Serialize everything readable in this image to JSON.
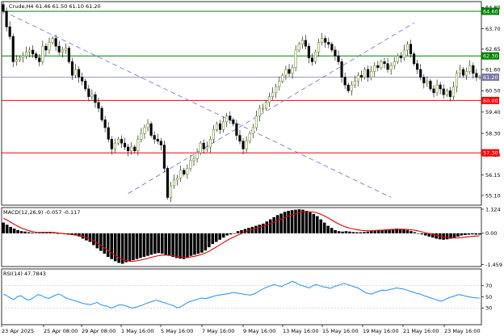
{
  "chart_data": [
    {
      "type": "candlestick",
      "title": "Crude,H4",
      "ohlc_label": "61.46 61.50 61.10 61.20",
      "ylim": [
        54.6,
        65.1
      ],
      "y_ticks": [
        "64.80",
        "63.70",
        "62.65",
        "61.60",
        "60.50",
        "59.40",
        "58.30",
        "57.20",
        "56.15",
        "55.10"
      ],
      "levels": [
        {
          "name": "resistance-64-60",
          "value": 64.6,
          "color": "#008000",
          "label": "64.60"
        },
        {
          "name": "resistance-62-30",
          "value": 62.3,
          "color": "#008000",
          "label": "62.30"
        },
        {
          "name": "current-price",
          "value": 61.2,
          "color": "#7878a8",
          "label": "61.20"
        },
        {
          "name": "support-60-00",
          "value": 60.0,
          "color": "#ff0000",
          "label": "60.00"
        },
        {
          "name": "support-57-30",
          "value": 57.3,
          "color": "#ff0000",
          "label": "57.30"
        }
      ],
      "trendlines": [
        {
          "name": "descending-trendline",
          "from": [
            0,
            64.6
          ],
          "to": [
            118,
            55.0
          ]
        },
        {
          "name": "ascending-trendline",
          "from": [
            38,
            55.2
          ],
          "to": [
            125,
            64.0
          ]
        }
      ],
      "bull_color": "#6b8e23",
      "bear_color": "#000000",
      "closes": [
        64.6,
        63.8,
        63.3,
        62.0,
        62.1,
        62.2,
        62.3,
        62.5,
        62.6,
        62.4,
        62.2,
        62.0,
        62.8,
        62.6,
        63.0,
        63.2,
        62.8,
        62.5,
        62.6,
        62.7,
        62.0,
        61.3,
        61.6,
        61.2,
        61.0,
        60.6,
        60.2,
        60.3,
        59.9,
        59.6,
        59.0,
        58.6,
        58.0,
        57.5,
        57.8,
        58.0,
        57.8,
        57.6,
        57.4,
        57.6,
        57.4,
        58.0,
        58.3,
        58.6,
        58.8,
        58.2,
        58.0,
        57.9,
        57.7,
        56.5,
        55.0,
        55.6,
        55.9,
        56.0,
        56.4,
        56.2,
        56.5,
        56.9,
        57.0,
        57.3,
        57.8,
        57.5,
        57.6,
        58.0,
        58.5,
        58.8,
        58.5,
        58.9,
        59.2,
        59.0,
        58.8,
        58.2,
        57.9,
        57.5,
        57.9,
        58.3,
        58.6,
        59.2,
        59.6,
        59.6,
        59.9,
        60.2,
        60.4,
        60.7,
        61.0,
        61.3,
        61.6,
        61.4,
        61.7,
        62.6,
        62.9,
        63.1,
        62.8,
        62.2,
        62.0,
        62.5,
        63.0,
        63.2,
        63.0,
        62.9,
        62.6,
        62.3,
        62.0,
        61.2,
        60.8,
        60.5,
        60.8,
        61.0,
        61.3,
        61.2,
        61.6,
        61.2,
        61.5,
        61.8,
        61.7,
        62.0,
        61.9,
        61.6,
        61.8,
        62.0,
        62.3,
        62.2,
        62.6,
        62.9,
        62.4,
        61.9,
        61.6,
        61.2,
        60.9,
        61.0,
        60.6,
        60.4,
        60.8,
        60.6,
        60.3,
        60.5,
        60.2,
        60.7,
        61.4,
        61.6,
        61.3,
        61.5,
        61.8,
        61.4,
        61.2,
        61.2
      ],
      "x_labels": [
        "23 Apr 2025",
        "25 Apr 08:00",
        "29 Apr 08:00",
        "1 May 16:00",
        "5 May 16:00",
        "7 May 16:00",
        "9 May 16:00",
        "13 May 16:00",
        "15 May 16:00",
        "19 May 16:00",
        "21 May 16:00",
        "23 May 16:00"
      ]
    },
    {
      "type": "histogram-line",
      "title": "MACD(12,26,9) -0.057 -0.117",
      "ylim": [
        -1.55,
        1.2
      ],
      "y_ticks": [
        "1.124",
        "0.00",
        "-1.459"
      ],
      "histogram": [
        0.5,
        0.4,
        0.3,
        0.22,
        0.15,
        0.1,
        0.08,
        0.05,
        0.03,
        0.02,
        0.05,
        0.07,
        0.06,
        0.05,
        0.02,
        0.0,
        -0.02,
        -0.04,
        -0.06,
        -0.08,
        -0.1,
        -0.15,
        -0.25,
        -0.33,
        -0.4,
        -0.55,
        -0.7,
        -0.82,
        -0.95,
        -1.1,
        -1.2,
        -1.3,
        -1.38,
        -1.42,
        -1.35,
        -1.3,
        -1.25,
        -1.2,
        -1.15,
        -1.1,
        -1.05,
        -1.0,
        -0.95,
        -0.92,
        -0.95,
        -1.0,
        -1.05,
        -1.1,
        -1.15,
        -1.18,
        -1.2,
        -1.15,
        -1.05,
        -1.0,
        -0.95,
        -0.9,
        -0.8,
        -0.65,
        -0.5,
        -0.4,
        -0.3,
        -0.2,
        -0.1,
        -0.05,
        0.0,
        0.1,
        0.15,
        0.2,
        0.25,
        0.3,
        0.35,
        0.4,
        0.45,
        0.55,
        0.65,
        0.75,
        0.85,
        0.92,
        1.0,
        1.05,
        1.08,
        1.1,
        1.12,
        1.1,
        1.05,
        0.98,
        0.9,
        0.8,
        0.65,
        0.5,
        0.35,
        0.25,
        0.15,
        0.1,
        0.08,
        0.1,
        0.08,
        0.06,
        0.05,
        0.05,
        0.06,
        0.08,
        0.1,
        0.12,
        0.14,
        0.15,
        0.16,
        0.18,
        0.2,
        0.22,
        0.2,
        0.18,
        0.15,
        0.1,
        0.05,
        0.0,
        -0.05,
        -0.1,
        -0.15,
        -0.2,
        -0.25,
        -0.28,
        -0.3,
        -0.28,
        -0.25,
        -0.2,
        -0.15,
        -0.1,
        -0.08,
        -0.06,
        -0.05,
        -0.06,
        -0.057
      ],
      "signal": [
        0.7,
        0.62,
        0.52,
        0.42,
        0.33,
        0.25,
        0.18,
        0.12,
        0.08,
        0.05,
        0.04,
        0.05,
        0.05,
        0.05,
        0.04,
        0.02,
        0.0,
        -0.02,
        -0.04,
        -0.06,
        -0.08,
        -0.11,
        -0.15,
        -0.2,
        -0.27,
        -0.35,
        -0.45,
        -0.56,
        -0.68,
        -0.8,
        -0.92,
        -1.03,
        -1.13,
        -1.22,
        -1.27,
        -1.3,
        -1.3,
        -1.28,
        -1.25,
        -1.21,
        -1.17,
        -1.12,
        -1.08,
        -1.04,
        -1.02,
        -1.01,
        -1.02,
        -1.04,
        -1.07,
        -1.1,
        -1.12,
        -1.12,
        -1.1,
        -1.07,
        -1.03,
        -0.98,
        -0.92,
        -0.84,
        -0.74,
        -0.64,
        -0.54,
        -0.43,
        -0.33,
        -0.24,
        -0.16,
        -0.08,
        -0.01,
        0.06,
        0.12,
        0.18,
        0.23,
        0.28,
        0.33,
        0.39,
        0.45,
        0.52,
        0.59,
        0.66,
        0.73,
        0.8,
        0.86,
        0.91,
        0.96,
        0.99,
        1.01,
        1.01,
        0.99,
        0.95,
        0.89,
        0.81,
        0.72,
        0.62,
        0.52,
        0.43,
        0.35,
        0.29,
        0.24,
        0.2,
        0.17,
        0.14,
        0.13,
        0.12,
        0.12,
        0.13,
        0.14,
        0.15,
        0.16,
        0.17,
        0.18,
        0.19,
        0.19,
        0.19,
        0.18,
        0.16,
        0.14,
        0.11,
        0.07,
        0.03,
        -0.01,
        -0.05,
        -0.09,
        -0.13,
        -0.17,
        -0.2,
        -0.21,
        -0.22,
        -0.21,
        -0.2,
        -0.18,
        -0.16,
        -0.14,
        -0.13,
        -0.117
      ],
      "line_color": "#e00000",
      "bar_color": "#000000"
    },
    {
      "type": "line",
      "title": "RSI(14) 47.7843",
      "ylim": [
        0,
        100
      ],
      "y_ticks": [
        "70",
        "50",
        "30"
      ],
      "levels": [
        70,
        30
      ],
      "values": [
        55,
        52,
        48,
        45,
        50,
        52,
        48,
        44,
        46,
        50,
        54,
        52,
        49,
        47,
        50,
        53,
        55,
        52,
        48,
        46,
        44,
        42,
        40,
        38,
        37,
        36,
        38,
        40,
        36,
        34,
        33,
        30,
        32,
        35,
        36,
        34,
        32,
        30,
        31,
        33,
        35,
        38,
        40,
        42,
        44,
        42,
        40,
        38,
        36,
        34,
        30,
        32,
        36,
        40,
        42,
        44,
        46,
        48,
        47,
        48,
        50,
        52,
        53,
        54,
        55,
        56,
        58,
        57,
        56,
        55,
        54,
        53,
        55,
        58,
        62,
        65,
        68,
        70,
        72,
        70,
        68,
        72,
        74,
        78,
        76,
        72,
        70,
        68,
        66,
        70,
        72,
        70,
        68,
        67,
        65,
        68,
        70,
        72,
        74,
        72,
        70,
        68,
        66,
        62,
        58,
        56,
        55,
        58,
        60,
        62,
        61,
        63,
        64,
        66,
        65,
        64,
        62,
        60,
        58,
        56,
        55,
        52,
        50,
        48,
        46,
        44,
        42,
        45,
        48,
        50,
        52,
        54,
        53,
        51,
        50,
        49,
        48,
        47.8
      ],
      "line_color": "#1e90ff"
    }
  ]
}
